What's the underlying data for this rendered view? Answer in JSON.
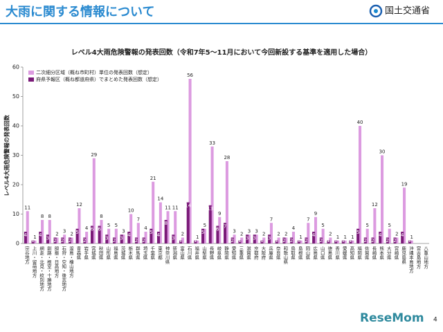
{
  "header": {
    "title": "大雨に関する情報について",
    "org": "国土交通省"
  },
  "footer": {
    "page": "4",
    "watermark": "ReseMom"
  },
  "chart_data": {
    "type": "bar",
    "title": "レベル4大雨危険警報の発表回数（令和7年5～11月において今回新設する基準を適用した場合）",
    "y_label": "レベル4大雨危険警報の発表回数",
    "legend": "top-left",
    "grid": false,
    "ylim": [
      0,
      60
    ],
    "yticks": [
      0,
      10,
      20,
      30,
      40,
      50,
      60
    ],
    "categories": [
      "宗谷地方",
      "上川・留萌地方",
      "網走・北見・紋別地方",
      "釧路・根室・十勝地方",
      "胆振・日高地方",
      "石狩・空知・後志地方",
      "渡島・檜山地方",
      "青森県",
      "岩手県",
      "宮城県",
      "秋田県",
      "山形県",
      "福島県",
      "茨城県",
      "栃木県",
      "群馬県",
      "埼玉県",
      "千葉県",
      "東京都",
      "神奈川県",
      "新潟県",
      "富山県",
      "石川県",
      "福井県",
      "山梨県",
      "長野県",
      "岐阜県",
      "静岡県",
      "愛知県",
      "三重県",
      "滋賀県",
      "京都府",
      "大阪府",
      "兵庫県",
      "奈良県",
      "和歌山県",
      "鳥取県",
      "島根県",
      "岡山県",
      "広島県",
      "山口県",
      "徳島県",
      "香川県",
      "愛媛県",
      "高知県",
      "福岡県",
      "佐賀県",
      "長崎県",
      "熊本県",
      "大分県",
      "宮崎県",
      "鹿児島県",
      "沖縄本島地方",
      "宮古島地方",
      "八重山地方"
    ],
    "series": [
      {
        "name": "二次細分区域（概ね市町村）単位の発表回数（想定）",
        "color": "#dc9be0",
        "values": [
          11,
          1,
          8,
          8,
          2,
          3,
          2,
          12,
          4,
          29,
          8,
          5,
          5,
          3,
          10,
          7,
          4,
          21,
          14,
          11,
          11,
          2,
          56,
          1,
          5,
          33,
          9,
          28,
          3,
          2,
          3,
          3,
          2,
          7,
          2,
          2,
          4,
          1,
          7,
          9,
          5,
          2,
          1,
          1,
          1,
          40,
          5,
          12,
          30,
          5,
          2,
          19,
          1,
          0,
          0
        ]
      },
      {
        "name": "府県予報区（概ね都道府県）でまとめた発表回数（想定）",
        "color": "#7a1a78",
        "values": [
          4,
          1,
          4,
          3,
          2,
          2,
          2,
          5,
          2,
          6,
          6,
          3,
          2,
          3,
          4,
          2,
          2,
          5,
          4,
          8,
          3,
          1,
          14,
          1,
          5,
          13,
          6,
          7,
          2,
          1,
          3,
          3,
          1,
          3,
          1,
          2,
          2,
          1,
          2,
          4,
          2,
          1,
          1,
          1,
          1,
          5,
          2,
          2,
          4,
          2,
          2,
          4,
          1,
          0,
          0
        ]
      }
    ]
  }
}
